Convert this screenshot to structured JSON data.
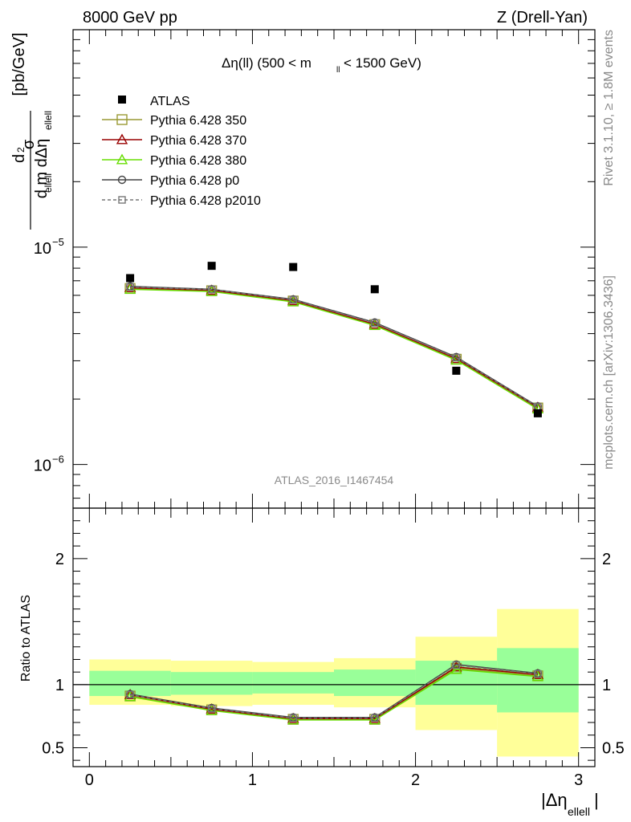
{
  "header": {
    "left": "8000 GeV pp",
    "right": "Z (Drell-Yan)"
  },
  "side": {
    "rivet": "Rivet 3.1.10, ≥ 1.8M events",
    "source": "mcplots.cern.ch [arXiv:1306.3436]"
  },
  "watermark": "ATLAS_2016_I1467454",
  "chart_data": {
    "type": "line",
    "title": "Δη(ll) (500 < m_ll < 1500 GeV)",
    "ylabel": "d²σ / d m_ellell dΔη_ellell [pb/GeV]",
    "xlabel": "|Δη_ellell|",
    "ratio_ylabel": "Ratio to ATLAS",
    "xlim": [
      -0.1,
      3.1
    ],
    "ylim": [
      6.3e-07,
      0.0001
    ],
    "yscale": "log",
    "ratio_ylim": [
      0.35,
      2.4
    ],
    "x_ticks": [
      "0",
      "1",
      "2",
      "3"
    ],
    "y_ticks": [
      "10⁻⁶",
      "10⁻⁵"
    ],
    "ratio_ticks": [
      "0.5",
      "1",
      "2"
    ],
    "bins": [
      [
        0,
        0.5
      ],
      [
        0.5,
        1
      ],
      [
        1,
        1.5
      ],
      [
        1.5,
        2
      ],
      [
        2,
        2.5
      ],
      [
        2.5,
        3
      ]
    ],
    "data": {
      "name": "ATLAS",
      "x": [
        0.25,
        0.75,
        1.25,
        1.75,
        2.25,
        2.75
      ],
      "y": [
        7.2e-06,
        8.2e-06,
        8.1e-06,
        6.4e-06,
        2.7e-06,
        1.72e-06
      ],
      "stat_band": [
        [
          0.91,
          1.11
        ],
        [
          0.92,
          1.1
        ],
        [
          0.93,
          1.1
        ],
        [
          0.91,
          1.12
        ],
        [
          0.84,
          1.19
        ],
        [
          0.78,
          1.29
        ]
      ],
      "total_band": [
        [
          0.84,
          1.2
        ],
        [
          0.83,
          1.19
        ],
        [
          0.84,
          1.18
        ],
        [
          0.82,
          1.21
        ],
        [
          0.64,
          1.38
        ],
        [
          0.43,
          1.6
        ]
      ]
    },
    "series": [
      {
        "name": "Pythia 6.428 350",
        "color": "#999933",
        "marker": "square-open",
        "dash": "solid",
        "y": [
          6.45e-06,
          6.3e-06,
          5.65e-06,
          4.4e-06,
          3.05e-06,
          1.82e-06
        ],
        "ratio": [
          0.91,
          0.8,
          0.725,
          0.725,
          1.13,
          1.07
        ]
      },
      {
        "name": "Pythia 6.428 370",
        "color": "#990000",
        "marker": "triangle-open",
        "dash": "solid",
        "y": [
          6.5e-06,
          6.32e-06,
          5.67e-06,
          4.42e-06,
          3.07e-06,
          1.83e-06
        ],
        "ratio": [
          0.92,
          0.805,
          0.73,
          0.73,
          1.14,
          1.08
        ]
      },
      {
        "name": "Pythia 6.428 380",
        "color": "#66dd00",
        "marker": "triangle-open",
        "dash": "solid",
        "y": [
          6.4e-06,
          6.25e-06,
          5.6e-06,
          4.36e-06,
          3.02e-06,
          1.8e-06
        ],
        "ratio": [
          0.905,
          0.795,
          0.72,
          0.72,
          1.12,
          1.065
        ]
      },
      {
        "name": "Pythia 6.428 p0",
        "color": "#444444",
        "marker": "circle-open",
        "dash": "solid",
        "y": [
          6.6e-06,
          6.4e-06,
          5.75e-06,
          4.5e-06,
          3.12e-06,
          1.85e-06
        ],
        "ratio": [
          0.925,
          0.815,
          0.74,
          0.74,
          1.16,
          1.09
        ]
      },
      {
        "name": "Pythia 6.428 p2010",
        "color": "#777777",
        "marker": "square-open-small",
        "dash": "dashed",
        "y": [
          6.55e-06,
          6.38e-06,
          5.72e-06,
          4.47e-06,
          3.1e-06,
          1.84e-06
        ],
        "ratio": [
          0.92,
          0.81,
          0.735,
          0.735,
          1.155,
          1.085
        ]
      }
    ]
  }
}
